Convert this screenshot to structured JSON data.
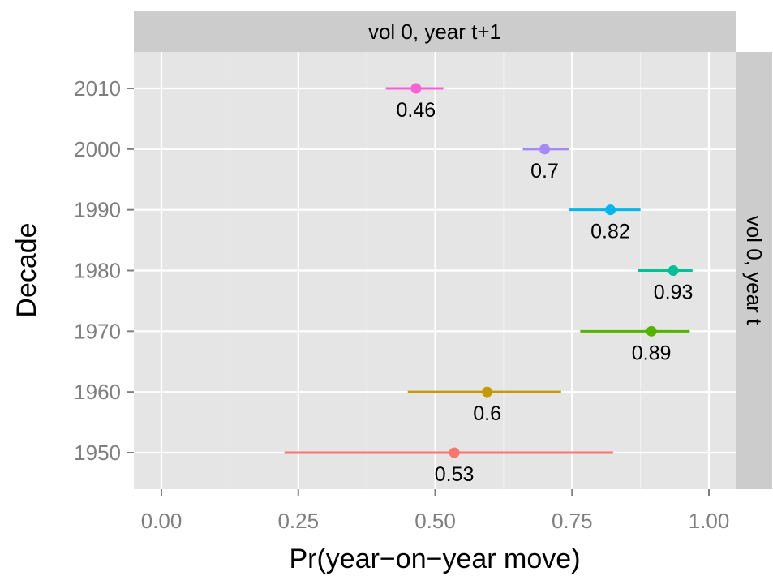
{
  "chart_data": {
    "type": "point-range",
    "facet_top_label": "vol 0, year t+1",
    "facet_right_label": "vol 0, year t",
    "xlabel": "Pr(year−on−year move)",
    "ylabel": "Decade",
    "xlim": [
      -0.05,
      1.05
    ],
    "x_ticks": [
      0,
      0.25,
      0.5,
      0.75,
      1
    ],
    "x_tick_labels": [
      "0.00",
      "0.25",
      "0.50",
      "0.75",
      "1.00"
    ],
    "categories": [
      "1950",
      "1960",
      "1970",
      "1980",
      "1990",
      "2000",
      "2010"
    ],
    "points": [
      {
        "decade": "1950",
        "estimate": 0.535,
        "lower": 0.225,
        "upper": 0.825,
        "label": "0.53",
        "color": "#F8766D"
      },
      {
        "decade": "1960",
        "estimate": 0.595,
        "lower": 0.45,
        "upper": 0.73,
        "label": "0.6",
        "color": "#C49A00"
      },
      {
        "decade": "1970",
        "estimate": 0.895,
        "lower": 0.765,
        "upper": 0.965,
        "label": "0.89",
        "color": "#53B400"
      },
      {
        "decade": "1980",
        "estimate": 0.935,
        "lower": 0.87,
        "upper": 0.97,
        "label": "0.93",
        "color": "#00C094"
      },
      {
        "decade": "1990",
        "estimate": 0.82,
        "lower": 0.745,
        "upper": 0.875,
        "label": "0.82",
        "color": "#00B6EB"
      },
      {
        "decade": "2000",
        "estimate": 0.7,
        "lower": 0.66,
        "upper": 0.745,
        "label": "0.7",
        "color": "#A58AFF"
      },
      {
        "decade": "2010",
        "estimate": 0.465,
        "lower": 0.41,
        "upper": 0.515,
        "label": "0.46",
        "color": "#FB61D7"
      }
    ],
    "grid": true,
    "legend": "none"
  }
}
